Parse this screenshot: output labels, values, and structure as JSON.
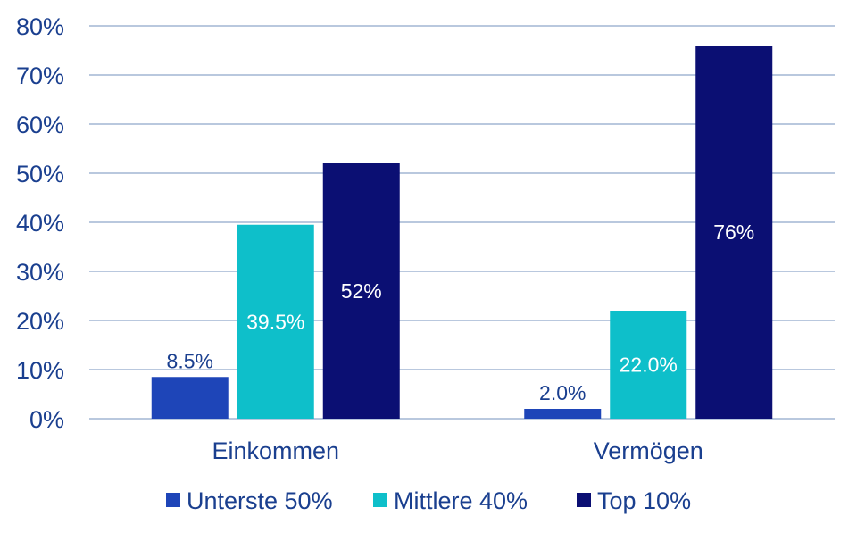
{
  "chart_data": {
    "type": "bar",
    "categories": [
      "Einkommen",
      "Vermögen"
    ],
    "series": [
      {
        "name": "Unterste 50%",
        "color": "#1e45b8",
        "values": [
          8.5,
          2.0
        ],
        "labels": [
          "8.5%",
          "2.0%"
        ],
        "label_position": "above"
      },
      {
        "name": "Mittlere 40%",
        "color": "#0ebfca",
        "values": [
          39.5,
          22.0
        ],
        "labels": [
          "39.5%",
          "22.0%"
        ],
        "label_position": "inside"
      },
      {
        "name": "Top 10%",
        "color": "#0b0f73",
        "values": [
          52,
          76
        ],
        "labels": [
          "52%",
          "76%"
        ],
        "label_position": "inside"
      }
    ],
    "ylim": [
      0,
      80
    ],
    "yticks": [
      0,
      10,
      20,
      30,
      40,
      50,
      60,
      70,
      80
    ],
    "ytick_labels": [
      "0%",
      "10%",
      "20%",
      "30%",
      "40%",
      "50%",
      "60%",
      "70%",
      "80%"
    ],
    "grid": true,
    "legend_position": "bottom",
    "axis_text_color": "#1a3f8f",
    "grid_color": "#8fa6c9"
  }
}
